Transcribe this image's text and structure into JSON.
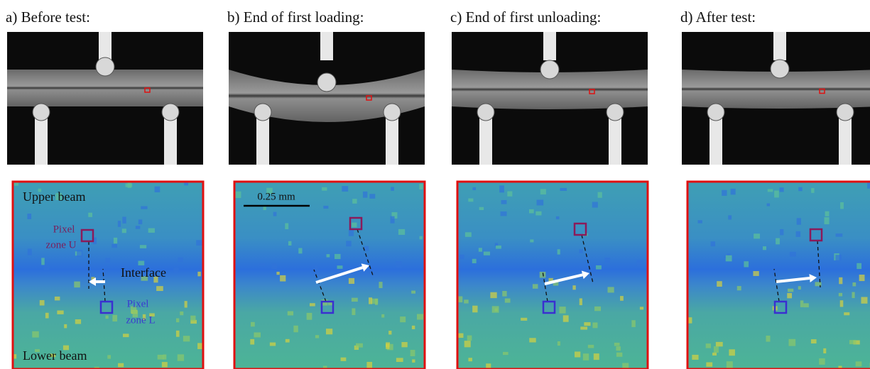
{
  "panels": [
    {
      "title": "a) Before test:"
    },
    {
      "title": "b) End of first loading:"
    },
    {
      "title": "c) End of first unloading:"
    },
    {
      "title": "d) After test:"
    }
  ],
  "annotations": {
    "upper_beam": "Upper beam",
    "pixel_zone_u": [
      "Pixel",
      "zone U"
    ],
    "interface": "Interface",
    "pixel_zone_l": [
      "Pixel",
      "zone L"
    ],
    "lower_beam": "Lower beam",
    "scale_bar": "0.25 mm"
  }
}
